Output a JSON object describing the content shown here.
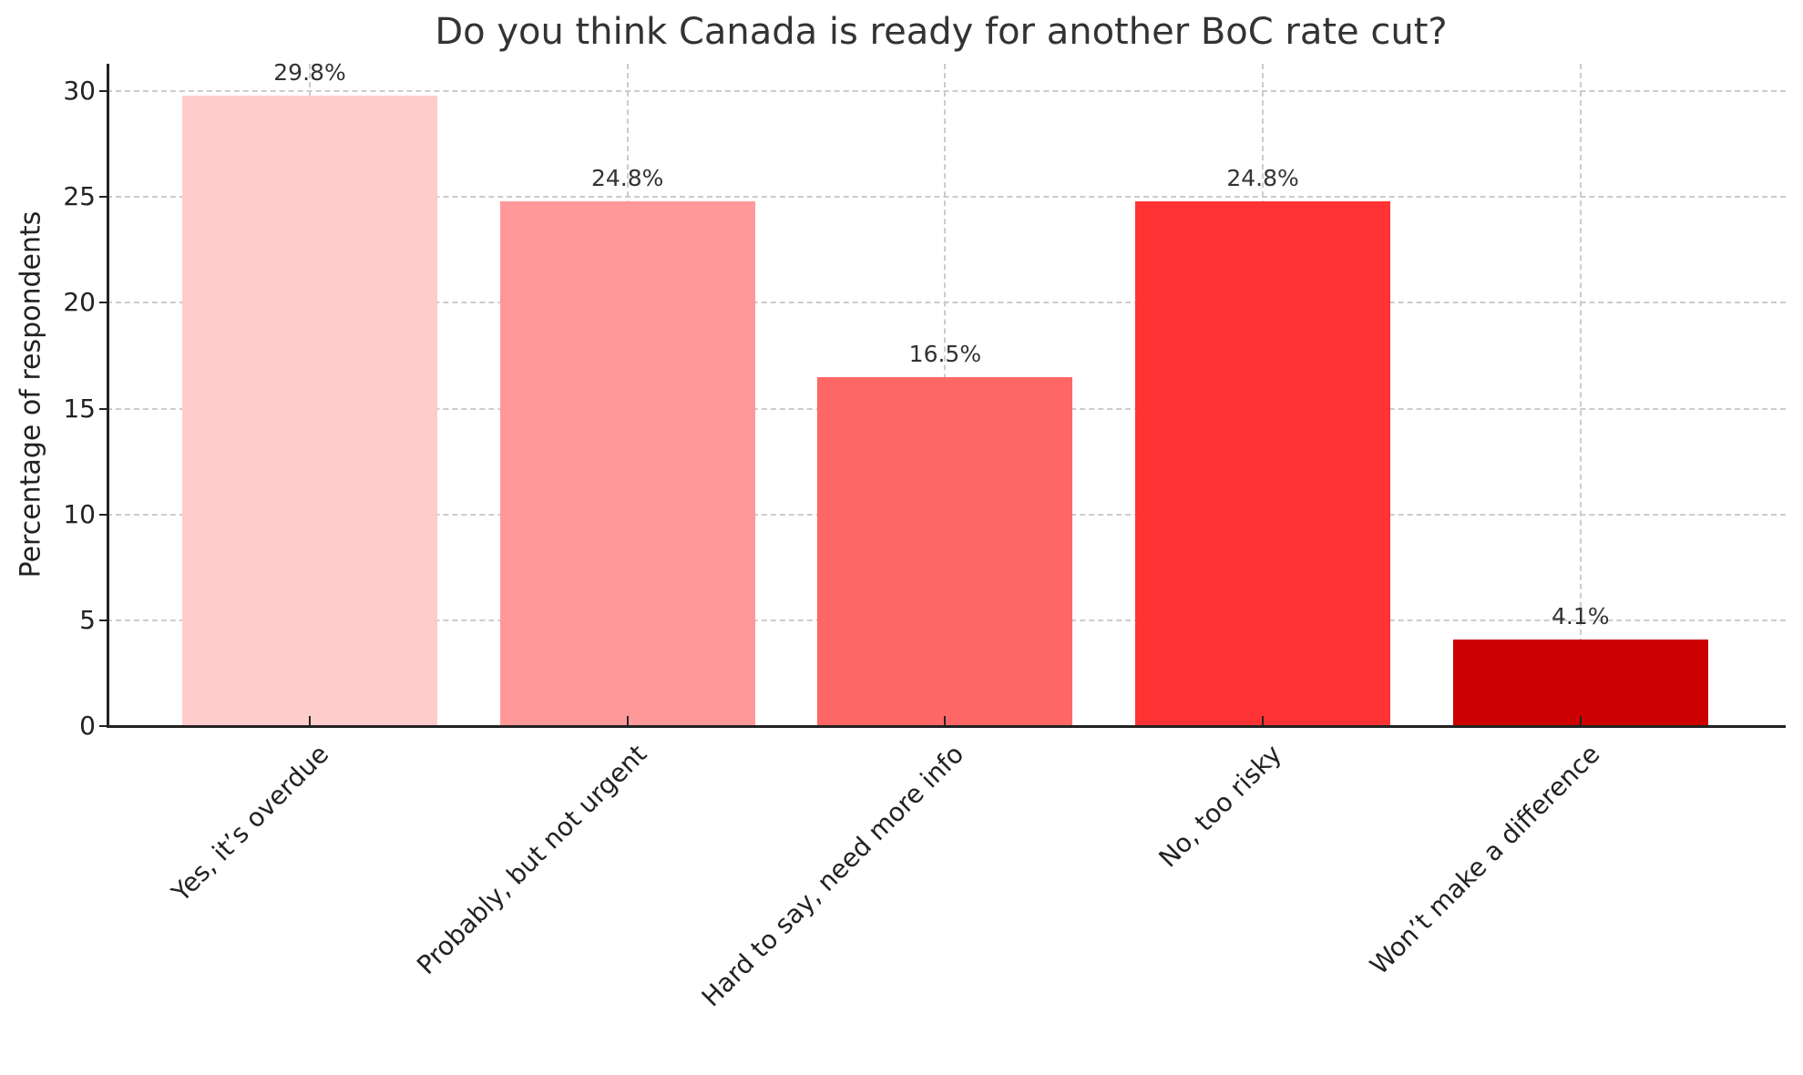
{
  "chart_data": {
    "type": "bar",
    "title": "Do you think Canada is ready for another BoC rate cut?",
    "xlabel": "",
    "ylabel": "Percentage of respondents",
    "categories": [
      "Yes, it’s overdue",
      "Probably, but not urgent",
      "Hard to say, need more info",
      "No, too risky",
      "Won’t make a difference"
    ],
    "values": [
      29.8,
      24.8,
      16.5,
      24.8,
      4.1
    ],
    "value_labels": [
      "29.8%",
      "24.8%",
      "16.5%",
      "24.8%",
      "4.1%"
    ],
    "colors": [
      "#FFCCCC",
      "#FF9999",
      "#FF6666",
      "#FF3333",
      "#CC0000"
    ],
    "ylim": [
      0,
      31.3
    ],
    "yticks": [
      0,
      5,
      10,
      15,
      20,
      25,
      30
    ],
    "grid": true,
    "legend": null
  }
}
